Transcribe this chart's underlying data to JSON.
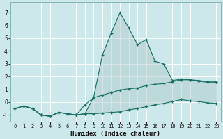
{
  "xlabel": "Humidex (Indice chaleur)",
  "background_color": "#cce8ea",
  "grid_color": "#ffffff",
  "line_color": "#1a6e64",
  "fill_color": "#c8dede",
  "xlim": [
    -0.5,
    23.5
  ],
  "ylim": [
    -1.5,
    7.8
  ],
  "yticks": [
    -1,
    0,
    1,
    2,
    3,
    4,
    5,
    6,
    7
  ],
  "xticks": [
    0,
    1,
    2,
    3,
    4,
    5,
    6,
    7,
    8,
    9,
    10,
    11,
    12,
    13,
    14,
    15,
    16,
    17,
    18,
    19,
    20,
    21,
    22,
    23
  ],
  "x": [
    0,
    1,
    2,
    3,
    4,
    5,
    6,
    7,
    8,
    9,
    10,
    11,
    12,
    13,
    14,
    15,
    16,
    17,
    18,
    19,
    20,
    21,
    22,
    23
  ],
  "y_top": [
    -0.5,
    -0.3,
    -0.5,
    -1.0,
    -1.1,
    -0.8,
    -0.9,
    -1.0,
    -0.9,
    0.4,
    3.7,
    5.4,
    7.0,
    5.8,
    4.5,
    4.9,
    3.2,
    3.0,
    1.7,
    1.8,
    1.75,
    1.65,
    1.55,
    1.6
  ],
  "y_mid": [
    -0.5,
    -0.3,
    -0.5,
    -1.0,
    -1.1,
    -0.8,
    -0.9,
    -1.0,
    -0.2,
    0.35,
    0.55,
    0.75,
    0.95,
    1.05,
    1.1,
    1.3,
    1.4,
    1.45,
    1.6,
    1.75,
    1.75,
    1.7,
    1.6,
    1.55
  ],
  "y_bot": [
    -0.5,
    -0.3,
    -0.5,
    -1.0,
    -1.1,
    -0.8,
    -0.9,
    -1.0,
    -0.9,
    -0.9,
    -0.85,
    -0.8,
    -0.75,
    -0.6,
    -0.5,
    -0.35,
    -0.2,
    -0.1,
    0.05,
    0.2,
    0.1,
    0.05,
    -0.05,
    -0.1
  ]
}
